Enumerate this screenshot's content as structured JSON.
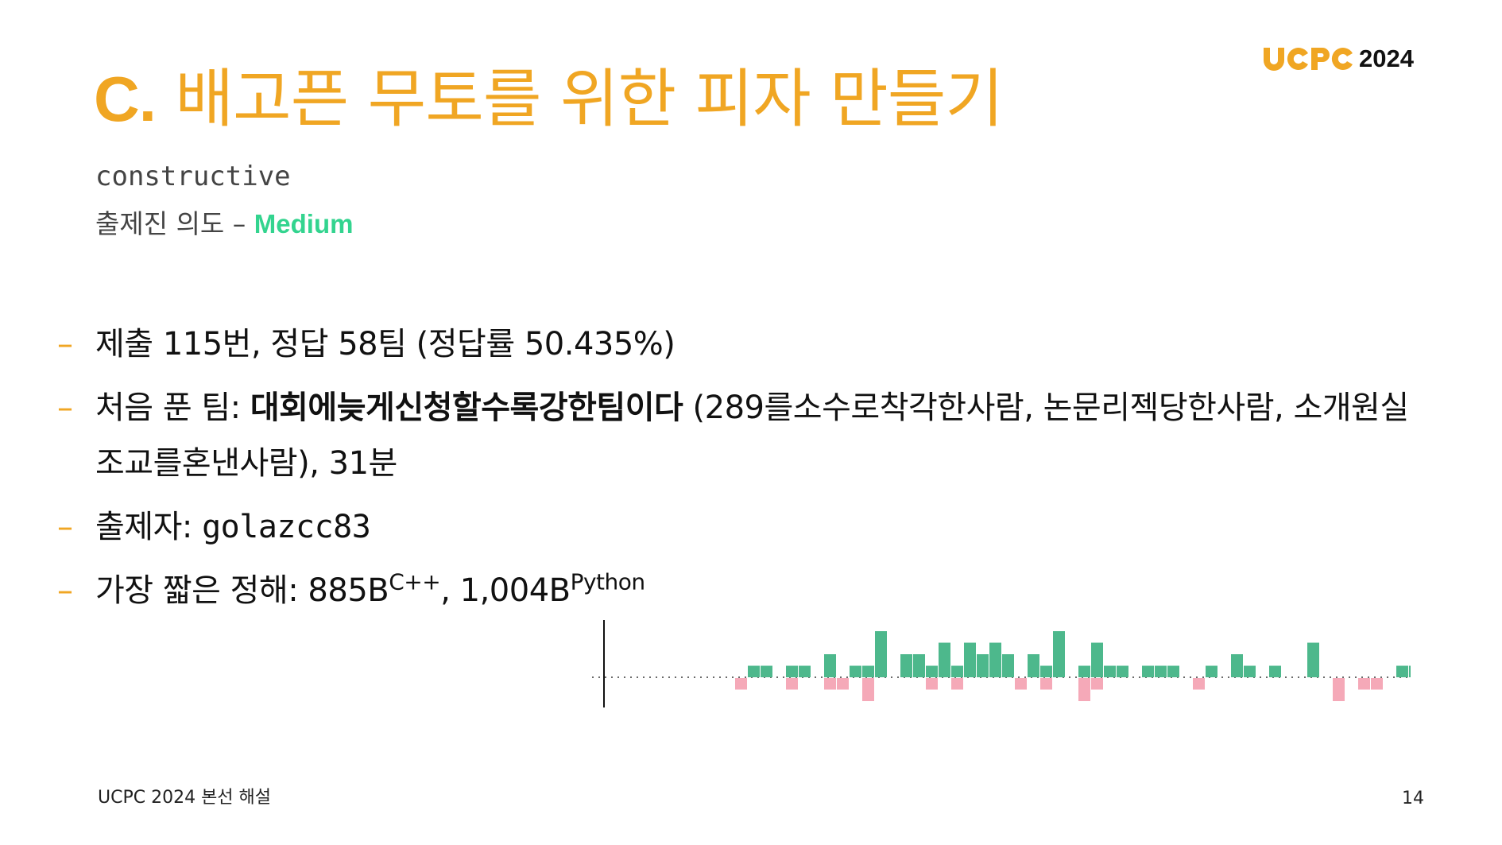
{
  "title": {
    "letter": "C.",
    "text": " 배고픈 무토를 위한 피자 만들기"
  },
  "logo": {
    "year": "2024"
  },
  "tag": "constructive",
  "intent": {
    "label": "출제진 의도 – ",
    "level": "Medium"
  },
  "bullets": {
    "submissions": "제출 115번, 정답 58팀 (정답률 50.435%)",
    "first_label": "처음 푼 팀: ",
    "first_team": "대회에늦게신청할수록강한팀이다",
    "first_detail": " (289를소수로착각한사람, 논문리젝당한사람, 소개원실조교를혼낸사람), 31분",
    "author_label": "출제자: ",
    "author": "golazcc83",
    "shortest_label": "가장 짧은 정해: ",
    "cpp_size": "885B",
    "cpp_lang": "C++",
    "sep": ", ",
    "py_size": "1,004B",
    "py_lang": "Python"
  },
  "chart_data": {
    "type": "bar",
    "description_free": true,
    "series": [
      {
        "color": "#4db88c",
        "values": [
          0,
          0,
          0,
          0,
          0,
          0,
          1,
          1,
          0,
          1,
          1,
          0,
          2,
          0,
          1,
          1,
          4,
          0,
          2,
          2,
          1,
          3,
          1,
          3,
          2,
          3,
          2,
          0,
          2,
          1,
          4,
          0,
          1,
          3,
          1,
          1,
          0,
          1,
          1,
          1,
          0,
          0,
          1,
          0,
          2,
          1,
          0,
          1,
          0,
          0,
          3,
          0,
          0,
          0,
          0,
          0,
          0,
          1,
          1,
          1,
          0,
          0
        ]
      },
      {
        "color": "#f5a9b8",
        "values": [
          0,
          0,
          0,
          0,
          0,
          1,
          0,
          0,
          0,
          1,
          0,
          0,
          1,
          1,
          0,
          2,
          0,
          0,
          0,
          0,
          1,
          0,
          1,
          0,
          0,
          0,
          0,
          1,
          0,
          1,
          0,
          0,
          2,
          1,
          0,
          0,
          0,
          0,
          0,
          0,
          0,
          1,
          0,
          0,
          0,
          0,
          0,
          0,
          0,
          0,
          0,
          0,
          2,
          0,
          1,
          1,
          0,
          0,
          0,
          0,
          0,
          0
        ]
      }
    ],
    "positive_color": "#4db88c",
    "negative_color": "#f5a9b8"
  },
  "footer": "UCPC 2024 본선 해설",
  "page_number": "14"
}
